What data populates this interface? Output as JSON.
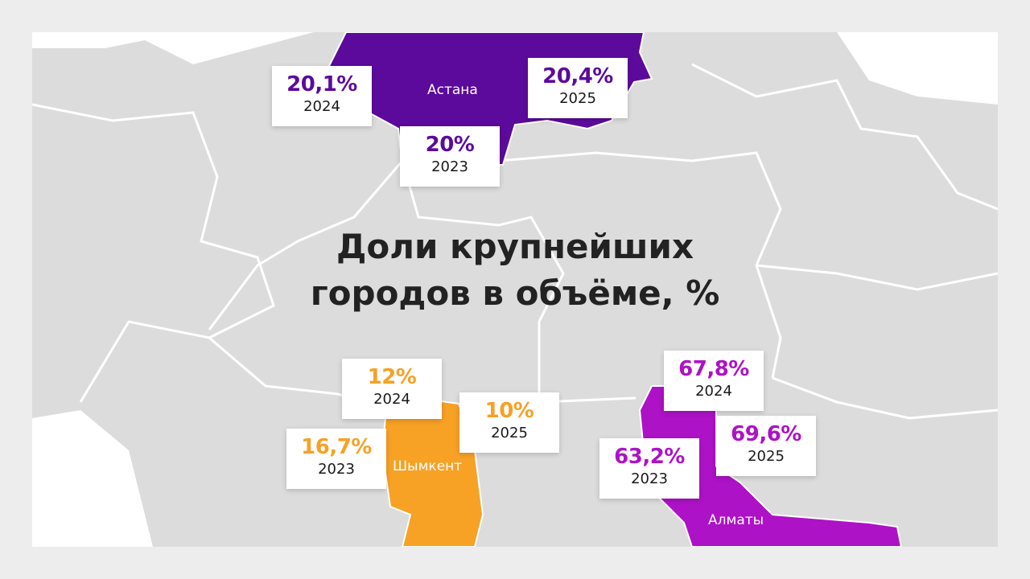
{
  "title_lines": [
    "Доли крупнейших",
    "городов в объёме, %"
  ],
  "cities": [
    {
      "name": "Астана",
      "color": "#5c0a9c",
      "figures": [
        {
          "value": "20,1%",
          "year": "2024"
        },
        {
          "value": "20,4%",
          "year": "2025"
        },
        {
          "value": "20%",
          "year": "2023"
        }
      ]
    },
    {
      "name": "Шымкент",
      "color": "#f7a125",
      "figures": [
        {
          "value": "12%",
          "year": "2024"
        },
        {
          "value": "10%",
          "year": "2025"
        },
        {
          "value": "16,7%",
          "year": "2023"
        }
      ]
    },
    {
      "name": "Алматы",
      "color": "#ad12c6",
      "figures": [
        {
          "value": "67,8%",
          "year": "2024"
        },
        {
          "value": "69,6%",
          "year": "2025"
        },
        {
          "value": "63,2%",
          "year": "2023"
        }
      ]
    }
  ]
}
